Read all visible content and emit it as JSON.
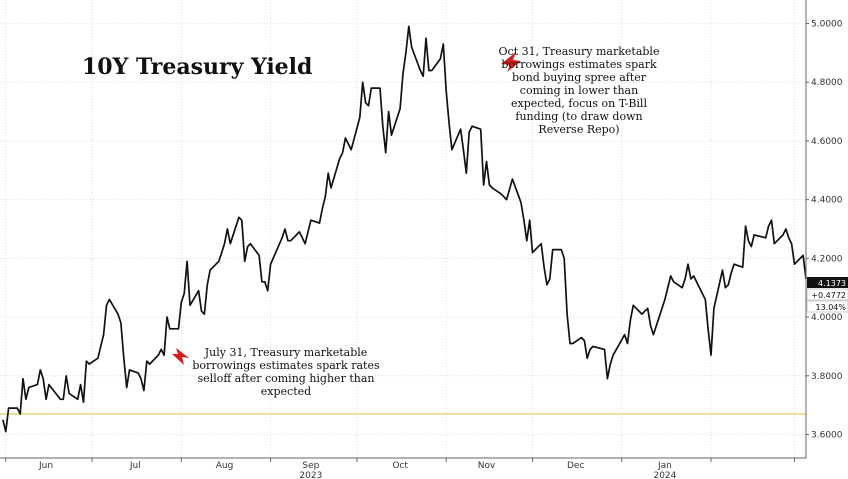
{
  "chart_data": {
    "type": "line",
    "title": "10Y Treasury Yield",
    "y_axis": {
      "min": 3.52,
      "max": 5.08,
      "ticks": [
        "5.0000",
        "4.8000",
        "4.6000",
        "4.4000",
        "4.2000",
        "4.0000",
        "3.8000",
        "3.6000"
      ],
      "side": "right"
    },
    "x_axis": {
      "months": [
        "Jun",
        "Jul",
        "Aug",
        "Sep",
        "Oct",
        "Nov",
        "Dec",
        "Jan"
      ],
      "years": [
        "2023",
        "2024"
      ]
    },
    "grid": true,
    "reference_line": {
      "value": 3.67,
      "color": "#e6c84a"
    },
    "current_labels": [
      "4.1373",
      "+0.4772",
      "13.04%"
    ],
    "annotations": [
      {
        "lines": [
          "Oct 31, Treasury marketable",
          "borrowings estimates spark",
          "bond buying spree after",
          "coming in lower than",
          "expected, focus on T-Bill",
          "funding (to draw down",
          "Reverse Repo)"
        ],
        "date": "2023-10-31"
      },
      {
        "lines": [
          "July 31, Treasury marketable",
          "borrowings estimates spark rates",
          "selloff after coming higher than",
          "expected"
        ],
        "date": "2023-07-31"
      }
    ],
    "series": [
      {
        "values": [
          [
            "2023-05-31",
            3.65
          ],
          [
            "2023-06-01",
            3.61
          ],
          [
            "2023-06-02",
            3.69
          ],
          [
            "2023-06-05",
            3.69
          ],
          [
            "2023-06-06",
            3.67
          ],
          [
            "2023-06-07",
            3.79
          ],
          [
            "2023-06-08",
            3.72
          ],
          [
            "2023-06-09",
            3.76
          ],
          [
            "2023-06-12",
            3.77
          ],
          [
            "2023-06-13",
            3.82
          ],
          [
            "2023-06-14",
            3.79
          ],
          [
            "2023-06-15",
            3.72
          ],
          [
            "2023-06-16",
            3.77
          ],
          [
            "2023-06-20",
            3.72
          ],
          [
            "2023-06-21",
            3.72
          ],
          [
            "2023-06-22",
            3.8
          ],
          [
            "2023-06-23",
            3.74
          ],
          [
            "2023-06-26",
            3.72
          ],
          [
            "2023-06-27",
            3.77
          ],
          [
            "2023-06-28",
            3.71
          ],
          [
            "2023-06-29",
            3.85
          ],
          [
            "2023-06-30",
            3.84
          ],
          [
            "2023-07-03",
            3.86
          ],
          [
            "2023-07-05",
            3.94
          ],
          [
            "2023-07-06",
            4.04
          ],
          [
            "2023-07-07",
            4.06
          ],
          [
            "2023-07-10",
            4.01
          ],
          [
            "2023-07-11",
            3.98
          ],
          [
            "2023-07-12",
            3.86
          ],
          [
            "2023-07-13",
            3.76
          ],
          [
            "2023-07-14",
            3.82
          ],
          [
            "2023-07-17",
            3.81
          ],
          [
            "2023-07-18",
            3.79
          ],
          [
            "2023-07-19",
            3.75
          ],
          [
            "2023-07-20",
            3.85
          ],
          [
            "2023-07-21",
            3.84
          ],
          [
            "2023-07-24",
            3.87
          ],
          [
            "2023-07-25",
            3.89
          ],
          [
            "2023-07-26",
            3.87
          ],
          [
            "2023-07-27",
            4.0
          ],
          [
            "2023-07-28",
            3.96
          ],
          [
            "2023-07-31",
            3.96
          ],
          [
            "2023-08-01",
            4.05
          ],
          [
            "2023-08-02",
            4.08
          ],
          [
            "2023-08-03",
            4.19
          ],
          [
            "2023-08-04",
            4.04
          ],
          [
            "2023-08-07",
            4.09
          ],
          [
            "2023-08-08",
            4.02
          ],
          [
            "2023-08-09",
            4.01
          ],
          [
            "2023-08-10",
            4.11
          ],
          [
            "2023-08-11",
            4.16
          ],
          [
            "2023-08-14",
            4.19
          ],
          [
            "2023-08-15",
            4.22
          ],
          [
            "2023-08-16",
            4.25
          ],
          [
            "2023-08-17",
            4.3
          ],
          [
            "2023-08-18",
            4.25
          ],
          [
            "2023-08-21",
            4.34
          ],
          [
            "2023-08-22",
            4.33
          ],
          [
            "2023-08-23",
            4.19
          ],
          [
            "2023-08-24",
            4.24
          ],
          [
            "2023-08-25",
            4.25
          ],
          [
            "2023-08-28",
            4.21
          ],
          [
            "2023-08-29",
            4.12
          ],
          [
            "2023-08-30",
            4.12
          ],
          [
            "2023-08-31",
            4.09
          ],
          [
            "2023-09-01",
            4.18
          ],
          [
            "2023-09-05",
            4.27
          ],
          [
            "2023-09-06",
            4.3
          ],
          [
            "2023-09-07",
            4.26
          ],
          [
            "2023-09-08",
            4.26
          ],
          [
            "2023-09-11",
            4.29
          ],
          [
            "2023-09-12",
            4.27
          ],
          [
            "2023-09-13",
            4.25
          ],
          [
            "2023-09-14",
            4.29
          ],
          [
            "2023-09-15",
            4.33
          ],
          [
            "2023-09-18",
            4.32
          ],
          [
            "2023-09-19",
            4.37
          ],
          [
            "2023-09-20",
            4.41
          ],
          [
            "2023-09-21",
            4.49
          ],
          [
            "2023-09-22",
            4.44
          ],
          [
            "2023-09-25",
            4.54
          ],
          [
            "2023-09-26",
            4.56
          ],
          [
            "2023-09-27",
            4.61
          ],
          [
            "2023-09-28",
            4.59
          ],
          [
            "2023-09-29",
            4.57
          ],
          [
            "2023-10-02",
            4.68
          ],
          [
            "2023-10-03",
            4.8
          ],
          [
            "2023-10-04",
            4.73
          ],
          [
            "2023-10-05",
            4.72
          ],
          [
            "2023-10-06",
            4.78
          ],
          [
            "2023-10-09",
            4.78
          ],
          [
            "2023-10-10",
            4.65
          ],
          [
            "2023-10-11",
            4.56
          ],
          [
            "2023-10-12",
            4.7
          ],
          [
            "2023-10-13",
            4.62
          ],
          [
            "2023-10-16",
            4.71
          ],
          [
            "2023-10-17",
            4.83
          ],
          [
            "2023-10-18",
            4.9
          ],
          [
            "2023-10-19",
            4.99
          ],
          [
            "2023-10-20",
            4.92
          ],
          [
            "2023-10-23",
            4.84
          ],
          [
            "2023-10-24",
            4.82
          ],
          [
            "2023-10-25",
            4.95
          ],
          [
            "2023-10-26",
            4.84
          ],
          [
            "2023-10-27",
            4.84
          ],
          [
            "2023-10-30",
            4.88
          ],
          [
            "2023-10-31",
            4.93
          ],
          [
            "2023-11-01",
            4.77
          ],
          [
            "2023-11-02",
            4.66
          ],
          [
            "2023-11-03",
            4.57
          ],
          [
            "2023-11-06",
            4.64
          ],
          [
            "2023-11-07",
            4.57
          ],
          [
            "2023-11-08",
            4.49
          ],
          [
            "2023-11-09",
            4.63
          ],
          [
            "2023-11-10",
            4.65
          ],
          [
            "2023-11-13",
            4.64
          ],
          [
            "2023-11-14",
            4.45
          ],
          [
            "2023-11-15",
            4.53
          ],
          [
            "2023-11-16",
            4.45
          ],
          [
            "2023-11-17",
            4.44
          ],
          [
            "2023-11-20",
            4.42
          ],
          [
            "2023-11-21",
            4.41
          ],
          [
            "2023-11-22",
            4.4
          ],
          [
            "2023-11-24",
            4.47
          ],
          [
            "2023-11-27",
            4.39
          ],
          [
            "2023-11-28",
            4.33
          ],
          [
            "2023-11-29",
            4.26
          ],
          [
            "2023-11-30",
            4.33
          ],
          [
            "2023-12-01",
            4.22
          ],
          [
            "2023-12-04",
            4.25
          ],
          [
            "2023-12-05",
            4.17
          ],
          [
            "2023-12-06",
            4.11
          ],
          [
            "2023-12-07",
            4.13
          ],
          [
            "2023-12-08",
            4.23
          ],
          [
            "2023-12-11",
            4.23
          ],
          [
            "2023-12-12",
            4.2
          ],
          [
            "2023-12-13",
            4.01
          ],
          [
            "2023-12-14",
            3.91
          ],
          [
            "2023-12-15",
            3.91
          ],
          [
            "2023-12-18",
            3.93
          ],
          [
            "2023-12-19",
            3.92
          ],
          [
            "2023-12-20",
            3.86
          ],
          [
            "2023-12-21",
            3.89
          ],
          [
            "2023-12-22",
            3.9
          ],
          [
            "2023-12-26",
            3.89
          ],
          [
            "2023-12-27",
            3.79
          ],
          [
            "2023-12-28",
            3.84
          ],
          [
            "2023-12-29",
            3.87
          ],
          [
            "2024-01-02",
            3.94
          ],
          [
            "2024-01-03",
            3.91
          ],
          [
            "2024-01-04",
            3.99
          ],
          [
            "2024-01-05",
            4.04
          ],
          [
            "2024-01-08",
            4.01
          ],
          [
            "2024-01-09",
            4.02
          ],
          [
            "2024-01-10",
            4.03
          ],
          [
            "2024-01-11",
            3.97
          ],
          [
            "2024-01-12",
            3.94
          ],
          [
            "2024-01-16",
            4.06
          ],
          [
            "2024-01-17",
            4.1
          ],
          [
            "2024-01-18",
            4.14
          ],
          [
            "2024-01-19",
            4.12
          ],
          [
            "2024-01-22",
            4.1
          ],
          [
            "2024-01-23",
            4.13
          ],
          [
            "2024-01-24",
            4.18
          ],
          [
            "2024-01-25",
            4.13
          ],
          [
            "2024-01-26",
            4.14
          ],
          [
            "2024-01-29",
            4.08
          ],
          [
            "2024-01-30",
            4.06
          ],
          [
            "2024-01-31",
            3.96
          ],
          [
            "2024-02-01",
            3.87
          ],
          [
            "2024-02-02",
            4.03
          ],
          [
            "2024-02-05",
            4.16
          ],
          [
            "2024-02-06",
            4.1
          ],
          [
            "2024-02-07",
            4.11
          ],
          [
            "2024-02-08",
            4.15
          ],
          [
            "2024-02-09",
            4.18
          ],
          [
            "2024-02-12",
            4.17
          ],
          [
            "2024-02-13",
            4.31
          ],
          [
            "2024-02-14",
            4.26
          ],
          [
            "2024-02-15",
            4.24
          ],
          [
            "2024-02-16",
            4.28
          ],
          [
            "2024-02-20",
            4.27
          ],
          [
            "2024-02-21",
            4.31
          ],
          [
            "2024-02-22",
            4.33
          ],
          [
            "2024-02-23",
            4.25
          ],
          [
            "2024-02-26",
            4.28
          ],
          [
            "2024-02-27",
            4.3
          ],
          [
            "2024-02-28",
            4.27
          ],
          [
            "2024-02-29",
            4.25
          ],
          [
            "2024-03-01",
            4.18
          ],
          [
            "2024-03-04",
            4.21
          ],
          [
            "2024-03-05",
            4.13
          ]
        ]
      }
    ]
  }
}
